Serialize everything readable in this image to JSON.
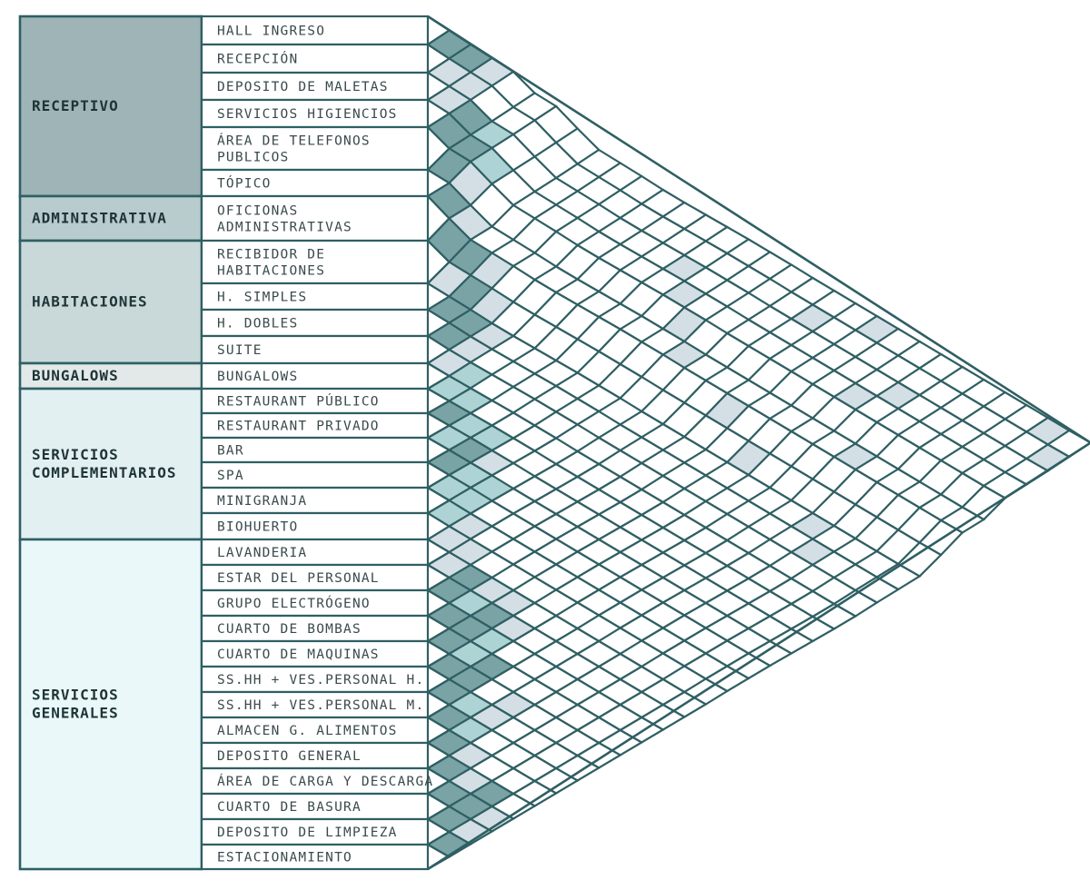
{
  "colors": {
    "line": "#2f5f63",
    "strong": "#7aa3a6",
    "medium": "#aed3d4",
    "weak": "#d3dfe5",
    "empty": "#ffffff",
    "text": "#3a4a4c",
    "groups": [
      "#9fb4b6",
      "#b8ccce",
      "#c9d9da",
      "#e3e9e9",
      "#e3f0f2",
      "#eaf8f9"
    ]
  },
  "groups": [
    {
      "label": "RECEPTIVO",
      "start": 0,
      "count": 6
    },
    {
      "label": "ADMINISTRATIVA",
      "start": 6,
      "count": 1
    },
    {
      "label": "HABITACIONES",
      "start": 7,
      "count": 4
    },
    {
      "label": "BUNGALOWS",
      "start": 11,
      "count": 1
    },
    {
      "label": "SERVICIOS\nCOMPLEMENTARIOS",
      "start": 12,
      "count": 6
    },
    {
      "label": "SERVICIOS\nGENERALES",
      "start": 18,
      "count": 13
    }
  ],
  "spaces": [
    "HALL INGRESO",
    "RECEPCIÓN",
    "DEPOSITO DE MALETAS",
    "SERVICIOS HIGIENCIOS",
    "ÁREA   DE   TELEFONOS\nPUBLICOS",
    "TÓPICO",
    "OFICIONAS\nADMINISTRATIVAS",
    "RECIBIDOR DE\nHABITACIONES",
    "H. SIMPLES",
    "H. DOBLES",
    "SUITE",
    "BUNGALOWS",
    "RESTAURANT PÚBLICO",
    "RESTAURANT PRIVADO",
    "BAR",
    "SPA",
    "MINIGRANJA",
    "BIOHUERTO",
    "LAVANDERIA",
    "ESTAR DEL PERSONAL",
    "GRUPO ELECTRÓGENO",
    "CUARTO DE BOMBAS",
    "CUARTO DE MAQUINAS",
    "SS.HH + VES.PERSONAL H.",
    "SS.HH + VES.PERSONAL M.",
    "ALMACEN G. ALIMENTOS",
    "DEPOSITO GENERAL",
    "ÁREA DE CARGA Y DESCARGA",
    "CUARTO DE BASURA",
    "DEPOSITO DE LIMPIEZA",
    "ESTACIONAMIENTO"
  ],
  "relations": {
    "levels": [
      "empty",
      "weak",
      "medium",
      "strong"
    ],
    "strong": [
      [
        0,
        1
      ],
      [
        0,
        2
      ],
      [
        2,
        4
      ],
      [
        3,
        4
      ],
      [
        4,
        5
      ],
      [
        3,
        5
      ],
      [
        5,
        6
      ],
      [
        6,
        7
      ],
      [
        6,
        8
      ],
      [
        8,
        9
      ],
      [
        7,
        9
      ],
      [
        8,
        10
      ],
      [
        9,
        10
      ],
      [
        12,
        13
      ],
      [
        13,
        15
      ],
      [
        14,
        15
      ],
      [
        18,
        20
      ],
      [
        19,
        20
      ],
      [
        20,
        21
      ],
      [
        21,
        22
      ],
      [
        22,
        23
      ],
      [
        20,
        22
      ],
      [
        19,
        22
      ],
      [
        22,
        24
      ],
      [
        23,
        24
      ],
      [
        21,
        24
      ],
      [
        24,
        25
      ],
      [
        25,
        26
      ],
      [
        26,
        27
      ],
      [
        27,
        28
      ],
      [
        28,
        29
      ],
      [
        29,
        30
      ],
      [
        26,
        29
      ],
      [
        27,
        29
      ]
    ],
    "medium": [
      [
        2,
        5
      ],
      [
        3,
        6
      ],
      [
        10,
        12
      ],
      [
        11,
        12
      ],
      [
        11,
        13
      ],
      [
        12,
        14
      ],
      [
        13,
        14
      ],
      [
        12,
        15
      ],
      [
        14,
        16
      ],
      [
        15,
        16
      ],
      [
        14,
        17
      ],
      [
        15,
        17
      ],
      [
        16,
        17
      ],
      [
        19,
        21
      ],
      [
        20,
        23
      ],
      [
        21,
        23
      ],
      [
        23,
        25
      ],
      [
        24,
        26
      ]
    ],
    "weak": [
      [
        0,
        3
      ],
      [
        1,
        2
      ],
      [
        1,
        3
      ],
      [
        2,
        3
      ],
      [
        4,
        6
      ],
      [
        5,
        7
      ],
      [
        6,
        9
      ],
      [
        7,
        8
      ],
      [
        7,
        10
      ],
      [
        8,
        11
      ],
      [
        9,
        11
      ],
      [
        10,
        11
      ],
      [
        13,
        16
      ],
      [
        16,
        18
      ],
      [
        17,
        18
      ],
      [
        17,
        19
      ],
      [
        18,
        19
      ],
      [
        18,
        21
      ],
      [
        18,
        22
      ],
      [
        19,
        23
      ],
      [
        23,
        26
      ],
      [
        22,
        26
      ],
      [
        25,
        27
      ],
      [
        26,
        28
      ],
      [
        27,
        30
      ],
      [
        28,
        30
      ],
      [
        2,
        14
      ],
      [
        3,
        15
      ],
      [
        4,
        16
      ],
      [
        5,
        17
      ],
      [
        1,
        19
      ],
      [
        0,
        21
      ],
      [
        3,
        23
      ],
      [
        2,
        24
      ],
      [
        6,
        20
      ],
      [
        7,
        22
      ],
      [
        5,
        25
      ],
      [
        0,
        29
      ],
      [
        1,
        30
      ],
      [
        8,
        26
      ],
      [
        9,
        27
      ]
    ]
  }
}
